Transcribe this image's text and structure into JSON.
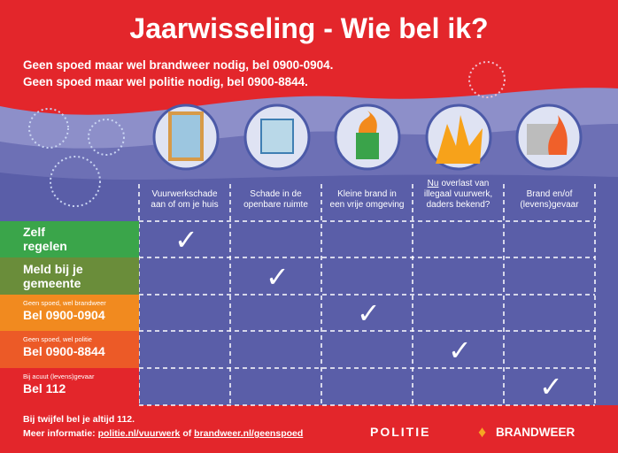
{
  "header": {
    "title": "Jaarwisseling - Wie bel ik?",
    "lines": [
      "Geen spoed maar wel brandweer nodig, bel 0900-0904.",
      "Geen spoed maar wel politie nodig, bel 0900-8844."
    ]
  },
  "columns": [
    {
      "lines": [
        "Vuurwerkschade",
        "aan of om je huis"
      ]
    },
    {
      "lines": [
        "Schade in de",
        "openbare ruimte"
      ]
    },
    {
      "lines": [
        "Kleine brand in",
        "een vrije omgeving"
      ]
    },
    {
      "underlined": "Nu",
      "lines": [
        "overlast van",
        "illegaal vuurwerk,",
        "daders bekend?"
      ]
    },
    {
      "lines": [
        "Brand en/of",
        "(levens)gevaar"
      ]
    }
  ],
  "rows": [
    {
      "lines": [
        "Zelf",
        "regelen"
      ]
    },
    {
      "lines": [
        "Meld bij je",
        "gemeente"
      ]
    },
    {
      "note": "Geen spoed, wel brandweer",
      "lines": [
        "Bel 0900-0904"
      ]
    },
    {
      "note": "Geen spoed, wel politie",
      "lines": [
        "Bel 0900-8844"
      ]
    },
    {
      "note": "Bij acuut (levens)gevaar",
      "lines": [
        "Bel 112"
      ]
    }
  ],
  "footer": {
    "line1": "Bij twijfel bel je altijd 112.",
    "info": "Meer informatie:",
    "link1": "politie.nl/vuurwerk",
    "or": "of",
    "link2": "brandweer.nl/geenspoed",
    "logo1": "POLITIE",
    "logo2": "BRANDWEER"
  }
}
